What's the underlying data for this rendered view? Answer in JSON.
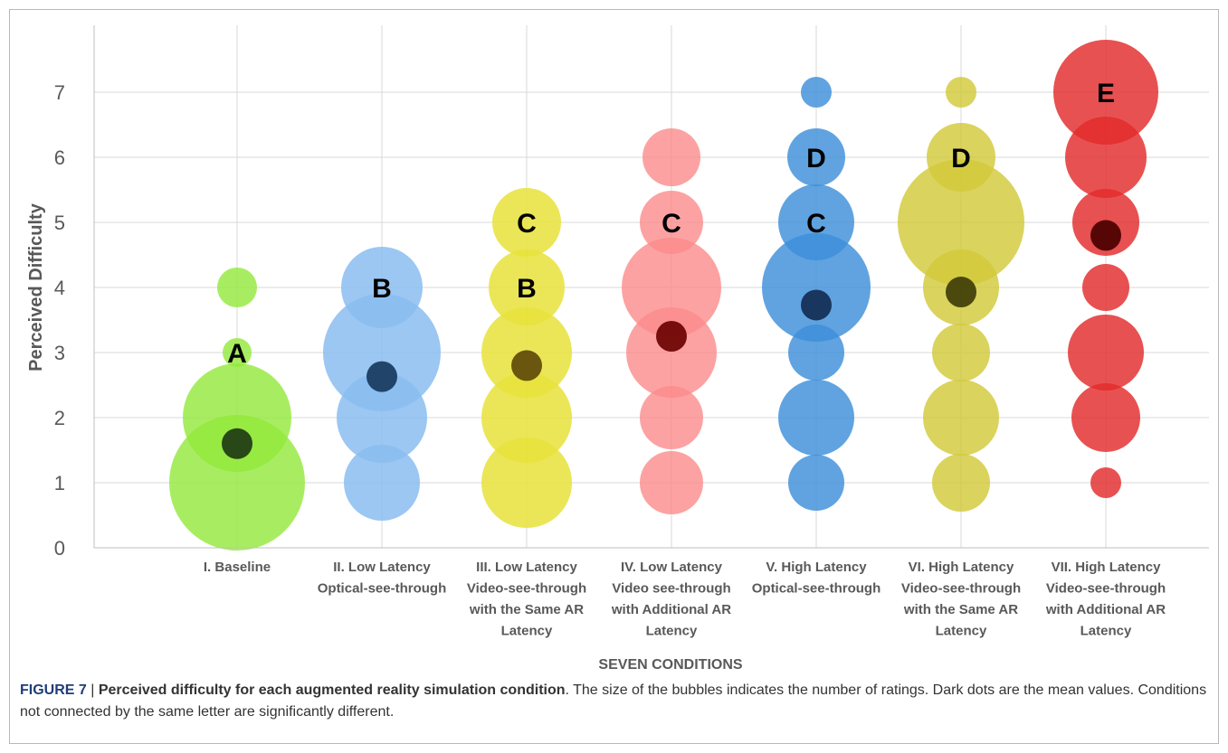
{
  "chart_data": {
    "type": "bubble",
    "ylabel": "Perceived Difficulty",
    "xlabel": "SEVEN CONDITIONS",
    "ylim": [
      0,
      7
    ],
    "yticks": [
      "0",
      "1",
      "2",
      "3",
      "4",
      "5",
      "6",
      "7"
    ],
    "grid": true,
    "categories": [
      [
        "I. Baseline"
      ],
      [
        "II. Low Latency",
        "Optical-see-through"
      ],
      [
        "III. Low Latency",
        "Video-see-through",
        "with the Same AR",
        "Latency"
      ],
      [
        "IV. Low Latency",
        "Video see-through",
        "with Additional AR",
        "Latency"
      ],
      [
        "V. High Latency",
        "Optical-see-through"
      ],
      [
        "VI. High Latency",
        "Video-see-through",
        "with the Same AR",
        "Latency"
      ],
      [
        "VII. High Latency",
        "Video-see-through",
        "with Additional AR",
        "Latency"
      ]
    ],
    "series": [
      {
        "color": "#92e83a",
        "opacity": 0.8,
        "mean": 1.6,
        "mean_color": "#1e3a14",
        "bubbles": [
          {
            "y": 1,
            "size": 75
          },
          {
            "y": 2,
            "size": 60
          },
          {
            "y": 3,
            "size": 16
          },
          {
            "y": 4,
            "size": 22
          }
        ],
        "letters": [
          {
            "text": "A",
            "y": 3
          }
        ]
      },
      {
        "color": "#89bdf0",
        "opacity": 0.85,
        "mean": 2.63,
        "mean_color": "#173a5e",
        "bubbles": [
          {
            "y": 1,
            "size": 42
          },
          {
            "y": 2,
            "size": 50
          },
          {
            "y": 3,
            "size": 65
          },
          {
            "y": 4,
            "size": 45
          }
        ],
        "letters": [
          {
            "text": "B",
            "y": 4
          }
        ]
      },
      {
        "color": "#e8e23a",
        "opacity": 0.85,
        "mean": 2.8,
        "mean_color": "#5e4a08",
        "bubbles": [
          {
            "y": 1,
            "size": 50
          },
          {
            "y": 2,
            "size": 50
          },
          {
            "y": 3,
            "size": 50
          },
          {
            "y": 4,
            "size": 42
          },
          {
            "y": 5,
            "size": 38
          }
        ],
        "letters": [
          {
            "text": "C",
            "y": 5
          },
          {
            "text": "B",
            "y": 4
          }
        ]
      },
      {
        "color": "#fb8b8b",
        "opacity": 0.8,
        "mean": 3.25,
        "mean_color": "#6b0202",
        "bubbles": [
          {
            "y": 1,
            "size": 35
          },
          {
            "y": 2,
            "size": 35
          },
          {
            "y": 3,
            "size": 50
          },
          {
            "y": 4,
            "size": 55
          },
          {
            "y": 5,
            "size": 35
          },
          {
            "y": 6,
            "size": 32
          }
        ],
        "letters": [
          {
            "text": "C",
            "y": 5
          }
        ]
      },
      {
        "color": "#3d8fd9",
        "opacity": 0.82,
        "mean": 3.73,
        "mean_color": "#142d52",
        "bubbles": [
          {
            "y": 1,
            "size": 31
          },
          {
            "y": 2,
            "size": 42
          },
          {
            "y": 3,
            "size": 31
          },
          {
            "y": 4,
            "size": 60
          },
          {
            "y": 5,
            "size": 42
          },
          {
            "y": 6,
            "size": 32
          },
          {
            "y": 7,
            "size": 17
          }
        ],
        "letters": [
          {
            "text": "C",
            "y": 5
          },
          {
            "text": "D",
            "y": 6
          }
        ]
      },
      {
        "color": "#d2c93a",
        "opacity": 0.82,
        "mean": 3.93,
        "mean_color": "#3f3d07",
        "bubbles": [
          {
            "y": 1,
            "size": 32
          },
          {
            "y": 2,
            "size": 42
          },
          {
            "y": 3,
            "size": 32
          },
          {
            "y": 4,
            "size": 42
          },
          {
            "y": 5,
            "size": 70
          },
          {
            "y": 6,
            "size": 38
          },
          {
            "y": 7,
            "size": 17
          }
        ],
        "letters": [
          {
            "text": "D",
            "y": 6
          }
        ]
      },
      {
        "color": "#e32b2b",
        "opacity": 0.82,
        "mean": 4.8,
        "mean_color": "#4a0000",
        "bubbles": [
          {
            "y": 1,
            "size": 17
          },
          {
            "y": 2,
            "size": 38
          },
          {
            "y": 3,
            "size": 42
          },
          {
            "y": 4,
            "size": 26
          },
          {
            "y": 5,
            "size": 37
          },
          {
            "y": 6,
            "size": 45
          },
          {
            "y": 7,
            "size": 58
          }
        ],
        "letters": [
          {
            "text": "E",
            "y": 7
          }
        ]
      }
    ]
  },
  "caption": {
    "label": "FIGURE 7",
    "separator": " | ",
    "title": "Perceived difficulty for each augmented reality simulation condition",
    "text": ". The size of the bubbles indicates the number of ratings. Dark dots are the mean values. Conditions not connected by the same letter are significantly different."
  }
}
